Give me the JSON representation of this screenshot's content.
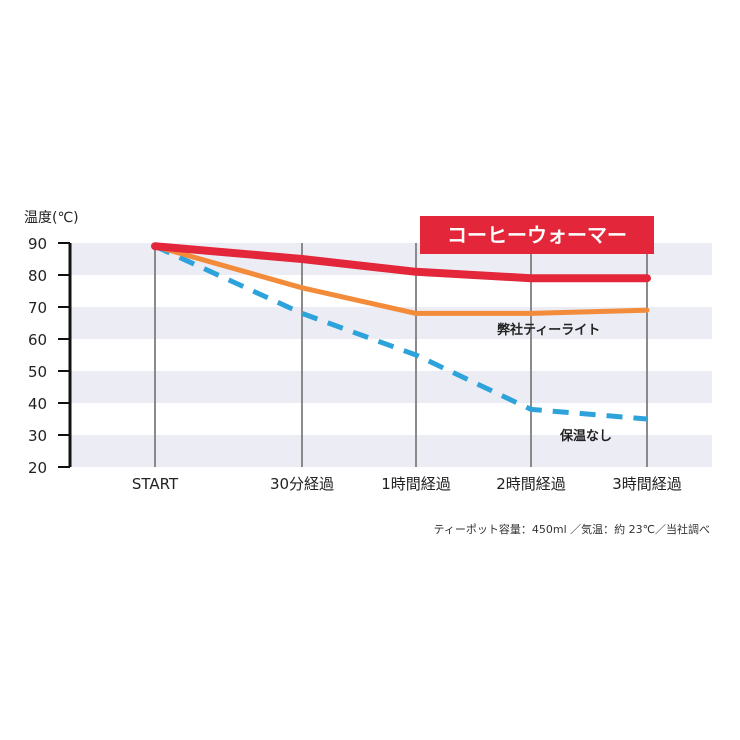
{
  "chart_data": {
    "type": "line",
    "ylabel": "温度(℃)",
    "ylim": [
      20,
      90
    ],
    "yticks": [
      90,
      80,
      70,
      60,
      50,
      40,
      30,
      20
    ],
    "categories": [
      "START",
      "30分経過",
      "1時間経過",
      "2時間経過",
      "3時間経過"
    ],
    "series": [
      {
        "name": "コーヒーウォーマー",
        "values": [
          89,
          85,
          81,
          79,
          79
        ],
        "color": "#e3263a",
        "style": "solid"
      },
      {
        "name": "弊社ティーライト",
        "values": [
          89,
          76,
          68,
          68,
          69
        ],
        "color": "#f28c3a",
        "style": "solid"
      },
      {
        "name": "保温なし",
        "values": [
          89,
          68,
          55,
          38,
          35
        ],
        "color": "#2ea3db",
        "style": "dashed"
      }
    ],
    "note": "ティーポット容量：450ml ／気温：約 23℃／当社調べ",
    "stripe_color": "#ececf5",
    "grid": true
  }
}
